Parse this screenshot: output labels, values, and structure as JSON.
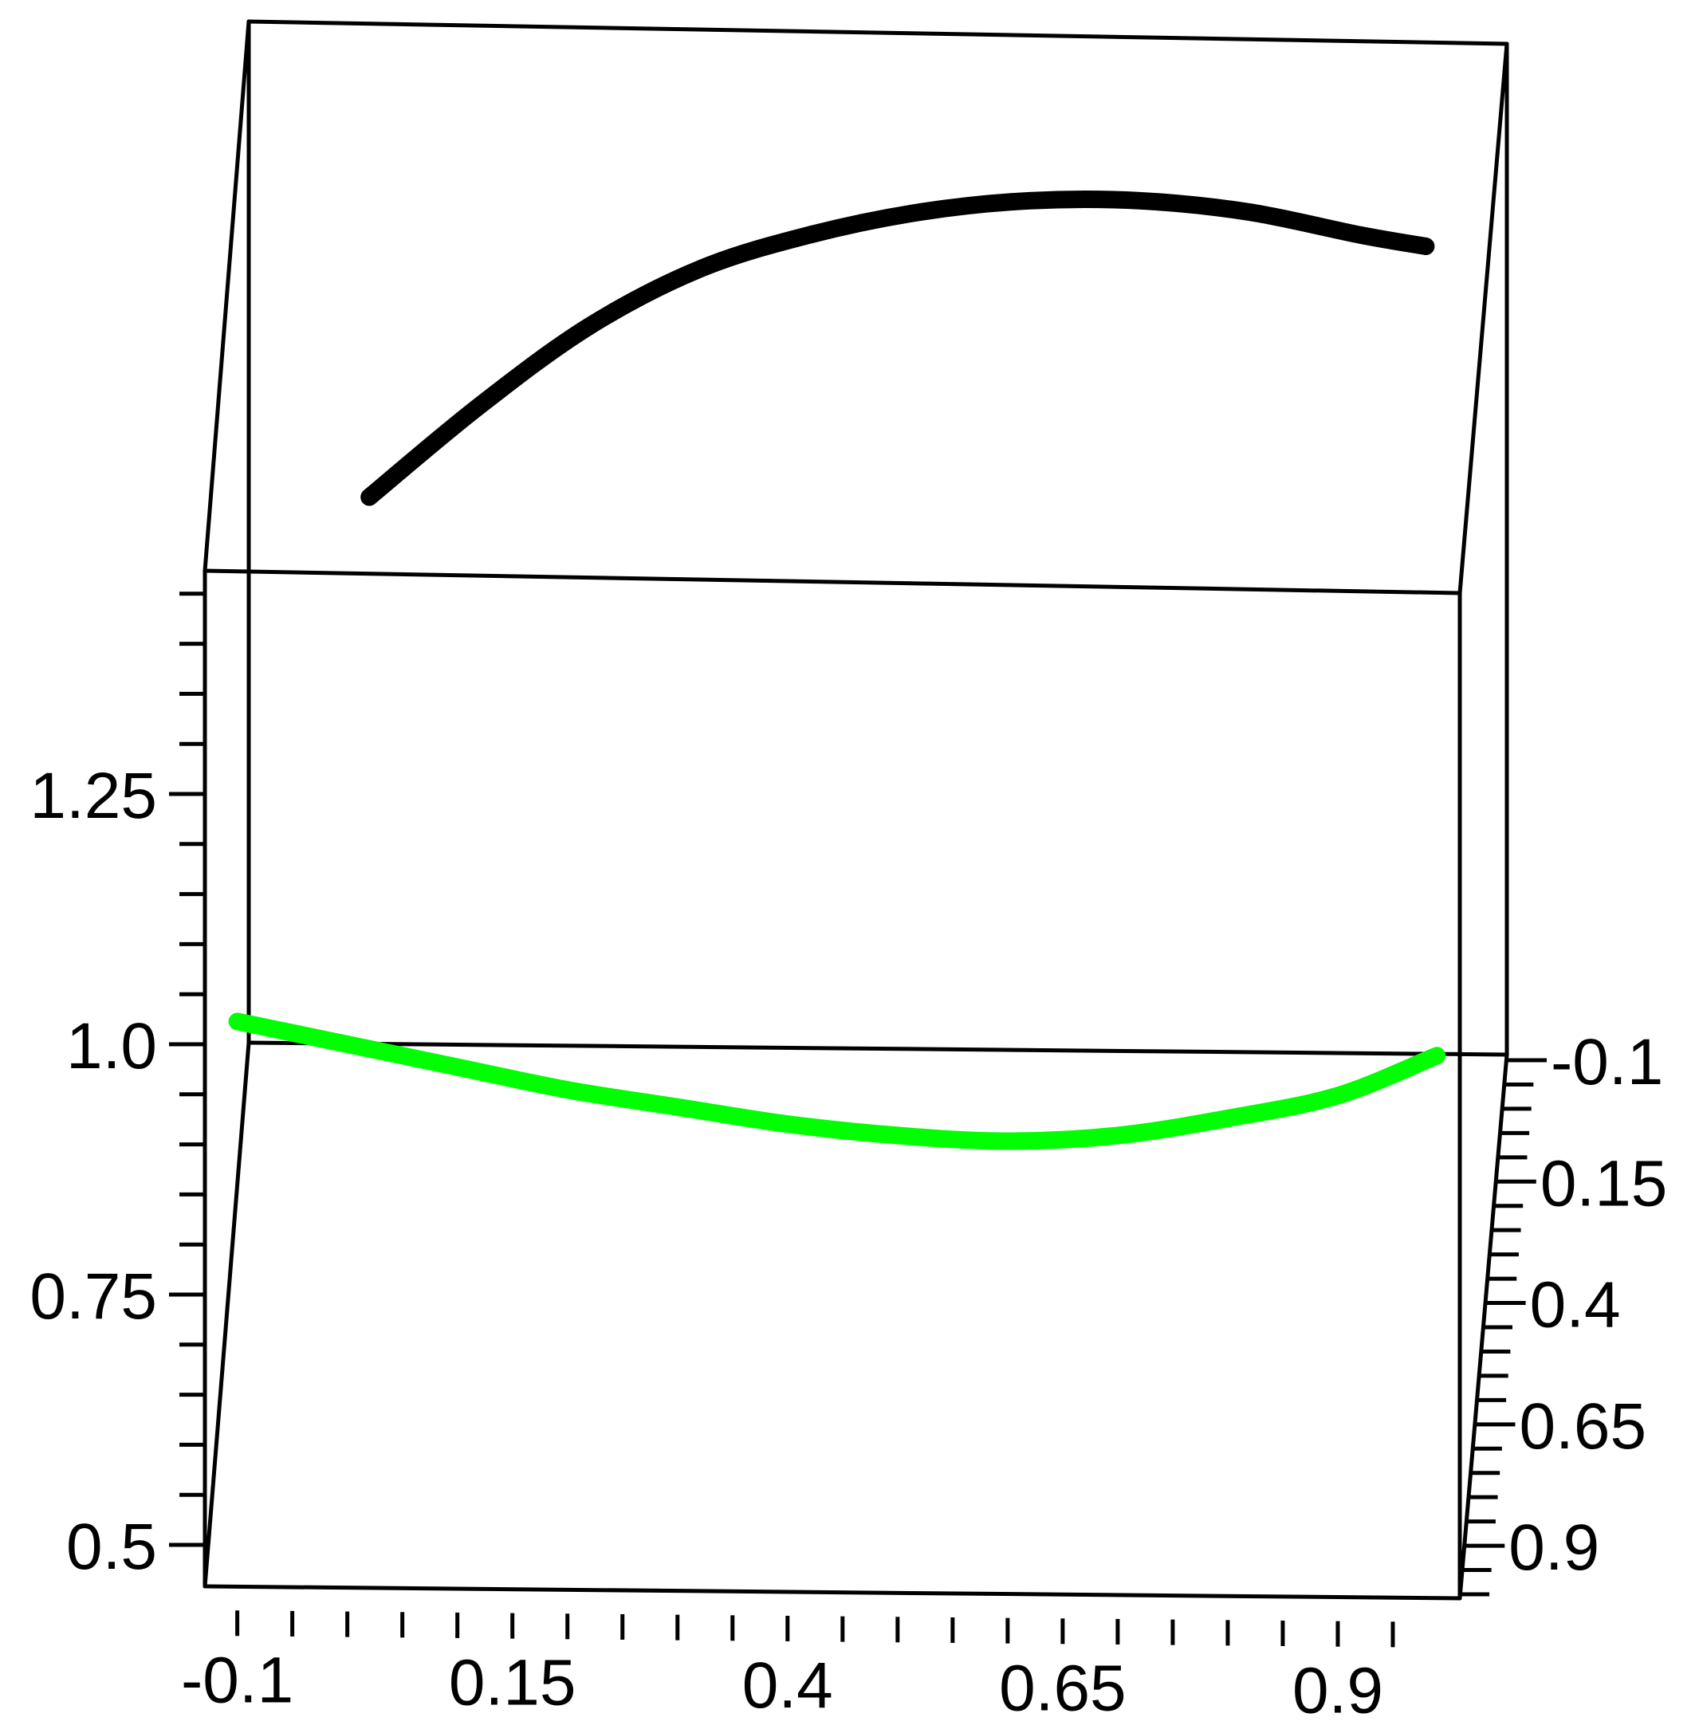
{
  "chart_data": {
    "type": "line",
    "title": "",
    "xlabel": "",
    "ylabel": "",
    "zlabel": "",
    "grid": false,
    "legend": "none",
    "x_axis": {
      "range": [
        -0.12,
        1.0
      ],
      "tick_labels": [
        "-0.1",
        "0.15",
        "0.4",
        "0.65",
        "0.9"
      ]
    },
    "z_axis": {
      "range": [
        0.47,
        1.49
      ],
      "tick_labels": [
        "1.25",
        "1.0",
        "0.75",
        "0.5"
      ]
    },
    "depth_axis": {
      "range": [
        -0.1,
        1.0
      ],
      "tick_labels": [
        "-0.1",
        "0.15",
        "0.4",
        "0.65",
        "0.9"
      ]
    },
    "series": [
      {
        "color": "#000000",
        "points": [
          {
            "x": 0.02,
            "z": 1.48
          },
          {
            "x": 0.12,
            "z": 1.56
          },
          {
            "x": 0.22,
            "z": 1.63
          },
          {
            "x": 0.32,
            "z": 1.68
          },
          {
            "x": 0.42,
            "z": 1.71
          },
          {
            "x": 0.52,
            "z": 1.73
          },
          {
            "x": 0.62,
            "z": 1.74
          },
          {
            "x": 0.72,
            "z": 1.74
          },
          {
            "x": 0.82,
            "z": 1.73
          },
          {
            "x": 0.92,
            "z": 1.71
          },
          {
            "x": 0.98,
            "z": 1.7
          }
        ]
      },
      {
        "color": "#00ff00",
        "points": [
          {
            "x": -0.1,
            "z": 1.02
          },
          {
            "x": 0.0,
            "z": 1.0
          },
          {
            "x": 0.1,
            "z": 0.98
          },
          {
            "x": 0.2,
            "z": 0.96
          },
          {
            "x": 0.3,
            "z": 0.945
          },
          {
            "x": 0.4,
            "z": 0.93
          },
          {
            "x": 0.5,
            "z": 0.92
          },
          {
            "x": 0.6,
            "z": 0.915
          },
          {
            "x": 0.7,
            "z": 0.92
          },
          {
            "x": 0.8,
            "z": 0.935
          },
          {
            "x": 0.9,
            "z": 0.955
          },
          {
            "x": 0.99,
            "z": 0.99
          }
        ]
      }
    ]
  }
}
